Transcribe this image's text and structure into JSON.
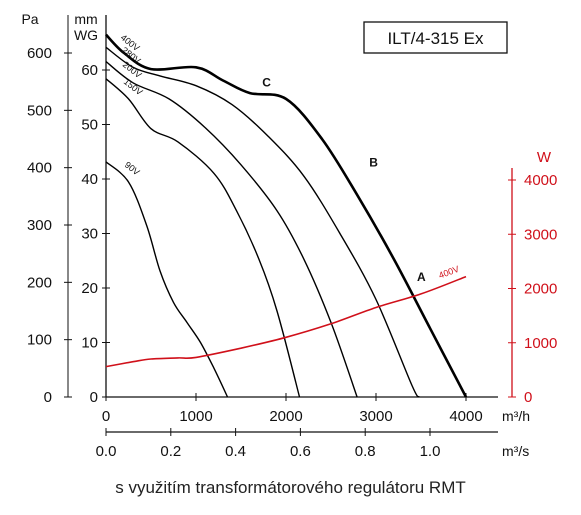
{
  "caption": "s využitím transformátorového regulátoru RMT",
  "chart_data": {
    "type": "line",
    "title": "ILT/4-315 Ex",
    "x_unit": "m³/h",
    "x2_unit": "m³/s",
    "y_unit": "Pa",
    "y2_unit": "mm WG",
    "y3_unit": "W",
    "xlim": [
      0,
      4000
    ],
    "ylim": [
      0,
      650
    ],
    "y3lim": [
      0,
      4000
    ],
    "x_ticks": [
      "0",
      "1000",
      "2000",
      "3000",
      "4000"
    ],
    "x2_ticks": [
      "0.0",
      "0.2",
      "0.4",
      "0.6",
      "0.8",
      "1.0"
    ],
    "y_ticks": [
      "0",
      "100",
      "200",
      "300",
      "400",
      "500",
      "600"
    ],
    "y2_ticks": [
      "0",
      "10",
      "20",
      "30",
      "40",
      "50",
      "60"
    ],
    "y3_ticks": [
      "0",
      "1000",
      "2000",
      "3000",
      "4000"
    ],
    "grid": false,
    "series": [
      {
        "name": "400V",
        "axis": "pressure",
        "color": "#000000",
        "bold": true,
        "x": [
          0,
          200,
          500,
          1000,
          1300,
          1600,
          2000,
          2400,
          2800,
          3200,
          3600,
          4000
        ],
        "y": [
          632,
          600,
          572,
          575,
          552,
          530,
          520,
          450,
          350,
          240,
          120,
          0
        ]
      },
      {
        "name": "280V",
        "axis": "pressure",
        "color": "#000000",
        "x": [
          0,
          300,
          600,
          1000,
          1400,
          1800,
          2200,
          2600,
          3000,
          3400,
          3480
        ],
        "y": [
          610,
          575,
          560,
          543,
          510,
          455,
          385,
          285,
          170,
          20,
          0
        ]
      },
      {
        "name": "200V",
        "axis": "pressure",
        "color": "#000000",
        "x": [
          0,
          300,
          700,
          1100,
          1500,
          1900,
          2200,
          2500,
          2790
        ],
        "y": [
          585,
          548,
          520,
          470,
          405,
          325,
          240,
          130,
          0
        ]
      },
      {
        "name": "150V",
        "axis": "pressure",
        "color": "#000000",
        "x": [
          0,
          250,
          500,
          800,
          1200,
          1450,
          1700,
          1900,
          2150
        ],
        "y": [
          555,
          520,
          468,
          445,
          390,
          325,
          240,
          150,
          0
        ]
      },
      {
        "name": "90V",
        "axis": "pressure",
        "color": "#000000",
        "x": [
          0,
          250,
          450,
          600,
          750,
          900,
          1050,
          1200,
          1350
        ],
        "y": [
          410,
          375,
          300,
          220,
          165,
          130,
          95,
          50,
          0
        ]
      },
      {
        "name": "400V",
        "axis": "power",
        "color": "#d0101a",
        "x": [
          0,
          300,
          500,
          800,
          1000,
          1500,
          2000,
          2500,
          3000,
          3500,
          4000
        ],
        "y": [
          560,
          650,
          700,
          720,
          730,
          900,
          1100,
          1350,
          1650,
          1900,
          2220
        ]
      }
    ],
    "curve_labels": [
      "400V",
      "280V",
      "200V",
      "150V",
      "90V"
    ],
    "power_label": "400V",
    "points": [
      {
        "label": "C",
        "x": 1780,
        "y": 535
      },
      {
        "label": "B",
        "x": 2970,
        "y": 395
      },
      {
        "label": "A",
        "x": 3500,
        "y": 195
      }
    ]
  }
}
